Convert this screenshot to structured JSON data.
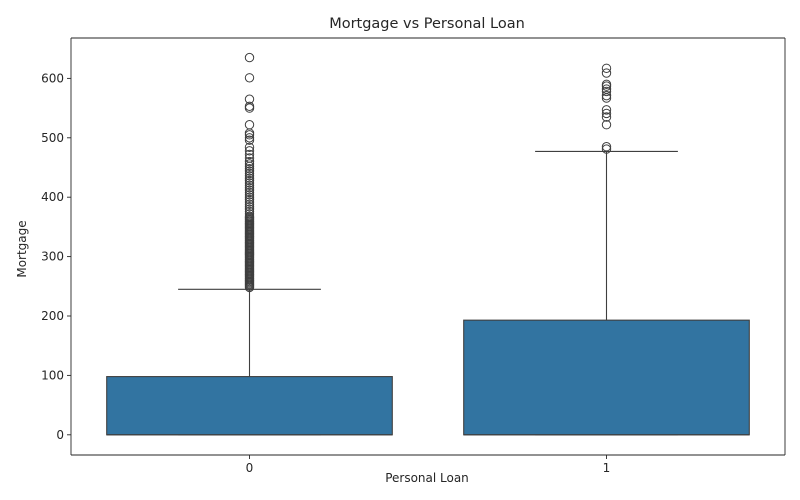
{
  "chart_data": {
    "type": "box",
    "title": "Mortgage vs Personal Loan",
    "xlabel": "Personal Loan",
    "ylabel": "Mortgage",
    "categories": [
      "0",
      "1"
    ],
    "ylim": [
      -34,
      668
    ],
    "yticks": [
      0,
      100,
      200,
      300,
      400,
      500,
      600
    ],
    "grid": false,
    "box_color": "#3274a1",
    "boxes": [
      {
        "category": "0",
        "q1": 0,
        "median": 0,
        "q3": 98,
        "whisker_low": 0,
        "whisker_high": 245,
        "outliers": [
          248,
          250,
          252,
          254,
          256,
          258,
          260,
          262,
          264,
          266,
          268,
          270,
          272,
          274,
          276,
          278,
          280,
          282,
          284,
          286,
          288,
          290,
          292,
          294,
          296,
          298,
          300,
          302,
          304,
          306,
          308,
          310,
          312,
          314,
          316,
          318,
          320,
          322,
          324,
          326,
          328,
          330,
          332,
          334,
          336,
          338,
          340,
          342,
          344,
          346,
          348,
          350,
          352,
          354,
          356,
          358,
          360,
          362,
          364,
          366,
          368,
          372,
          376,
          380,
          384,
          388,
          392,
          396,
          400,
          404,
          408,
          412,
          416,
          420,
          424,
          428,
          432,
          436,
          440,
          444,
          448,
          452,
          456,
          460,
          466,
          472,
          478,
          484,
          496,
          500,
          505,
          508,
          522,
          550,
          553,
          565,
          601,
          635
        ]
      },
      {
        "category": "1",
        "q1": 0,
        "median": 0,
        "q3": 193,
        "whisker_low": 0,
        "whisker_high": 477,
        "outliers": [
          481,
          485,
          522,
          535,
          541,
          547,
          567,
          571,
          578,
          582,
          587,
          590,
          609,
          617
        ]
      }
    ]
  }
}
